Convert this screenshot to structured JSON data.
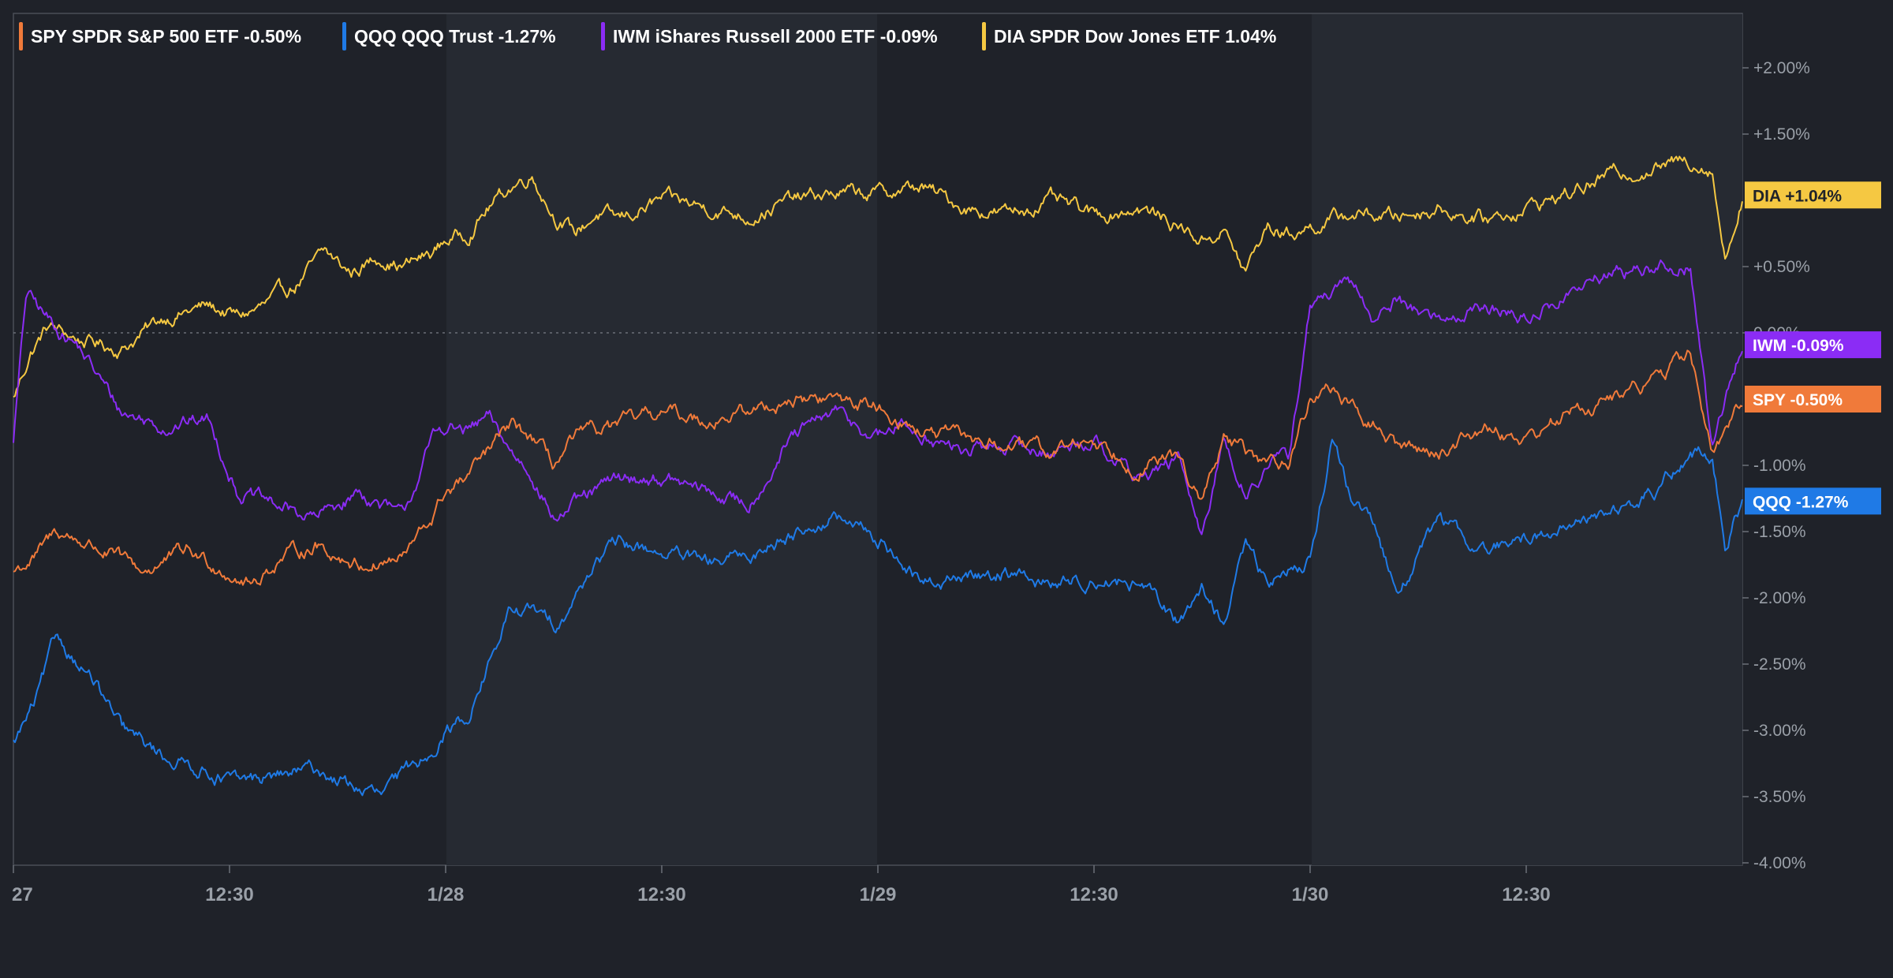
{
  "chart_data": {
    "type": "line",
    "ylim": [
      -4.0,
      2.3
    ],
    "y_ticks": [
      {
        "value": 2.0,
        "label": "+2.00%"
      },
      {
        "value": 1.5,
        "label": "+1.50%"
      },
      {
        "value": 0.5,
        "label": "+0.50%"
      },
      {
        "value": 0.0,
        "label": "0.00%"
      },
      {
        "value": -1.0,
        "label": "-1.00%"
      },
      {
        "value": -1.5,
        "label": "-1.50%"
      },
      {
        "value": -2.0,
        "label": "-2.00%"
      },
      {
        "value": -2.5,
        "label": "-2.50%"
      },
      {
        "value": -3.0,
        "label": "-3.00%"
      },
      {
        "value": -3.5,
        "label": "-3.50%"
      },
      {
        "value": -4.0,
        "label": "-4.00%"
      }
    ],
    "x_ticks": [
      {
        "pos": 0.0,
        "label": "27"
      },
      {
        "pos": 0.5,
        "label": "12:30"
      },
      {
        "pos": 1.0,
        "label": "1/28"
      },
      {
        "pos": 1.5,
        "label": "12:30"
      },
      {
        "pos": 2.0,
        "label": "1/29"
      },
      {
        "pos": 2.5,
        "label": "12:30"
      },
      {
        "pos": 3.0,
        "label": "1/30"
      },
      {
        "pos": 3.5,
        "label": "12:30"
      }
    ],
    "xlim": [
      0.0,
      4.0
    ],
    "zero_line": true,
    "legend_position": "top-left",
    "series": [
      {
        "name": "DIA",
        "legend": "DIA    SPDR Dow Jones ETF    1.04%",
        "tag": "DIA      +1.04%",
        "color": "#f5c842",
        "x": [
          0.0,
          0.04,
          0.08,
          0.15,
          0.25,
          0.35,
          0.45,
          0.52,
          0.58,
          0.65,
          0.72,
          0.78,
          0.85,
          0.9,
          0.97,
          1.0,
          1.05,
          1.1,
          1.15,
          1.2,
          1.25,
          1.3,
          1.35,
          1.4,
          1.5,
          1.6,
          1.7,
          1.8,
          1.9,
          2.0,
          2.1,
          2.2,
          2.3,
          2.4,
          2.5,
          2.6,
          2.7,
          2.75,
          2.8,
          2.85,
          2.9,
          2.95,
          3.0,
          3.05,
          3.1,
          3.2,
          3.3,
          3.4,
          3.5,
          3.6,
          3.7,
          3.8,
          3.88,
          3.93,
          3.96,
          4.0
        ],
        "y": [
          -0.5,
          -0.15,
          0.05,
          -0.05,
          -0.12,
          0.12,
          0.2,
          0.12,
          0.2,
          0.35,
          0.6,
          0.45,
          0.58,
          0.5,
          0.6,
          0.7,
          0.75,
          0.95,
          1.1,
          1.2,
          0.9,
          0.75,
          0.9,
          0.85,
          1.0,
          0.95,
          0.88,
          1.0,
          1.05,
          1.05,
          1.1,
          0.95,
          0.9,
          1.0,
          0.88,
          0.95,
          0.8,
          0.7,
          0.78,
          0.45,
          0.8,
          0.75,
          0.8,
          0.85,
          0.9,
          0.88,
          0.95,
          0.85,
          0.95,
          1.05,
          1.2,
          1.25,
          1.3,
          1.25,
          0.55,
          1.04
        ]
      },
      {
        "name": "IWM",
        "legend": "IWM    iShares Russell 2000 ETF    -0.09%",
        "tag": "IWM      -0.09%",
        "color": "#8b2cf5",
        "x": [
          0.0,
          0.03,
          0.08,
          0.15,
          0.25,
          0.35,
          0.45,
          0.52,
          0.6,
          0.7,
          0.8,
          0.9,
          0.97,
          1.0,
          1.05,
          1.1,
          1.15,
          1.2,
          1.25,
          1.3,
          1.35,
          1.4,
          1.5,
          1.6,
          1.7,
          1.8,
          1.9,
          2.0,
          2.05,
          2.1,
          2.15,
          2.2,
          2.3,
          2.4,
          2.5,
          2.6,
          2.7,
          2.75,
          2.8,
          2.85,
          2.9,
          2.95,
          3.0,
          3.05,
          3.1,
          3.15,
          3.2,
          3.3,
          3.4,
          3.5,
          3.6,
          3.7,
          3.8,
          3.88,
          3.93,
          3.96,
          4.0
        ],
        "y": [
          -0.8,
          0.3,
          0.1,
          -0.1,
          -0.6,
          -0.7,
          -0.65,
          -1.2,
          -1.3,
          -1.4,
          -1.2,
          -1.4,
          -0.8,
          -0.7,
          -0.75,
          -0.65,
          -0.9,
          -1.05,
          -1.4,
          -1.3,
          -1.2,
          -1.1,
          -1.1,
          -1.2,
          -1.3,
          -0.8,
          -0.6,
          -0.8,
          -0.7,
          -0.75,
          -0.85,
          -0.9,
          -0.85,
          -0.9,
          -0.8,
          -1.1,
          -0.95,
          -1.6,
          -0.8,
          -1.2,
          -1.0,
          -0.95,
          0.2,
          0.3,
          0.35,
          0.1,
          0.25,
          0.1,
          0.2,
          0.1,
          0.3,
          0.45,
          0.5,
          0.5,
          -0.9,
          -0.5,
          -0.09
        ]
      },
      {
        "name": "SPY",
        "legend": "SPY    SPDR S&P 500 ETF    -0.50%",
        "tag": "SPY      -0.50%",
        "color": "#f07a3a",
        "x": [
          0.0,
          0.05,
          0.1,
          0.18,
          0.3,
          0.4,
          0.5,
          0.55,
          0.62,
          0.7,
          0.8,
          0.9,
          0.97,
          1.0,
          1.05,
          1.1,
          1.15,
          1.2,
          1.25,
          1.3,
          1.4,
          1.5,
          1.6,
          1.7,
          1.8,
          1.9,
          2.0,
          2.05,
          2.1,
          2.2,
          2.3,
          2.4,
          2.5,
          2.6,
          2.7,
          2.75,
          2.8,
          2.85,
          2.9,
          2.95,
          3.0,
          3.05,
          3.1,
          3.15,
          3.2,
          3.3,
          3.4,
          3.5,
          3.6,
          3.7,
          3.8,
          3.88,
          3.93,
          3.96,
          4.0
        ],
        "y": [
          -1.8,
          -1.7,
          -1.5,
          -1.6,
          -1.8,
          -1.65,
          -1.8,
          -1.9,
          -1.7,
          -1.6,
          -1.75,
          -1.7,
          -1.4,
          -1.2,
          -1.1,
          -0.9,
          -0.7,
          -0.8,
          -1.0,
          -0.8,
          -0.7,
          -0.6,
          -0.65,
          -0.6,
          -0.5,
          -0.5,
          -0.55,
          -0.65,
          -0.75,
          -0.8,
          -0.85,
          -0.9,
          -0.8,
          -1.0,
          -0.95,
          -1.3,
          -0.8,
          -0.9,
          -1.0,
          -0.95,
          -0.5,
          -0.4,
          -0.6,
          -0.7,
          -0.85,
          -0.9,
          -0.7,
          -0.8,
          -0.6,
          -0.5,
          -0.35,
          -0.15,
          -0.9,
          -0.8,
          -0.5
        ]
      },
      {
        "name": "QQQ",
        "legend": "QQQ    QQQ Trust    -1.27%",
        "tag": "QQQ     -1.27%",
        "color": "#1f7ae6",
        "x": [
          0.0,
          0.05,
          0.1,
          0.18,
          0.25,
          0.35,
          0.45,
          0.52,
          0.6,
          0.7,
          0.77,
          0.85,
          0.95,
          1.0,
          1.05,
          1.1,
          1.15,
          1.2,
          1.25,
          1.3,
          1.35,
          1.4,
          1.5,
          1.6,
          1.7,
          1.8,
          1.9,
          2.0,
          2.05,
          2.1,
          2.2,
          2.3,
          2.4,
          2.5,
          2.6,
          2.7,
          2.75,
          2.8,
          2.85,
          2.9,
          2.95,
          3.0,
          3.05,
          3.1,
          3.15,
          3.2,
          3.3,
          3.4,
          3.5,
          3.6,
          3.7,
          3.8,
          3.88,
          3.93,
          3.96,
          4.0
        ],
        "y": [
          -3.1,
          -2.8,
          -2.3,
          -2.6,
          -3.0,
          -3.2,
          -3.3,
          -3.4,
          -3.35,
          -3.3,
          -3.4,
          -3.5,
          -3.2,
          -3.0,
          -2.9,
          -2.5,
          -2.1,
          -2.1,
          -2.2,
          -2.0,
          -1.7,
          -1.6,
          -1.65,
          -1.75,
          -1.7,
          -1.5,
          -1.4,
          -1.55,
          -1.7,
          -1.9,
          -1.85,
          -1.8,
          -1.9,
          -1.85,
          -1.9,
          -2.2,
          -1.9,
          -2.2,
          -1.6,
          -1.9,
          -1.8,
          -1.7,
          -0.8,
          -1.3,
          -1.5,
          -1.95,
          -1.4,
          -1.65,
          -1.55,
          -1.45,
          -1.35,
          -1.2,
          -0.9,
          -0.95,
          -1.6,
          -1.27
        ]
      }
    ]
  }
}
